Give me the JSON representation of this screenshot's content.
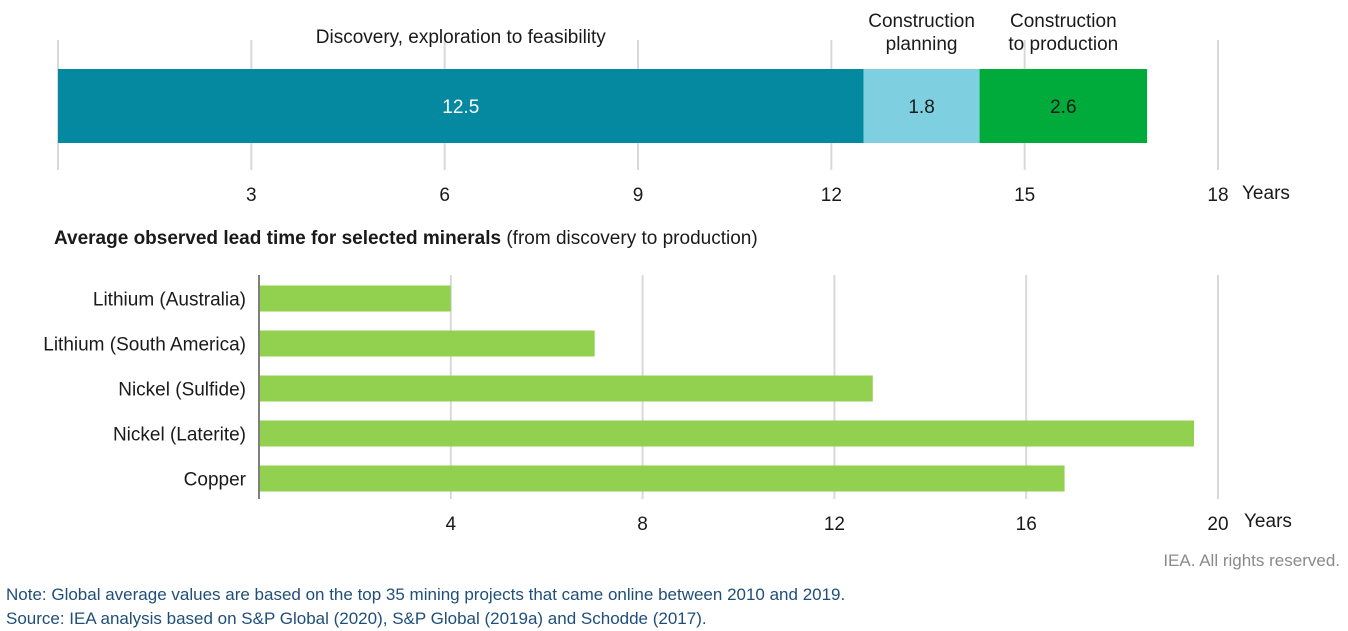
{
  "colors": {
    "stage1": "#0589a0",
    "stage2": "#7ed0e0",
    "stage3": "#00ab3c",
    "minerals": "#92d050",
    "grid": "#d9d9d9",
    "axis": "#7f7f7f"
  },
  "chart_data": [
    {
      "type": "bar",
      "orientation": "horizontal-stacked",
      "title": "",
      "categories": [
        ""
      ],
      "series": [
        {
          "name": "Discovery, exploration to feasibility",
          "values": [
            12.5
          ]
        },
        {
          "name": "Construction planning",
          "values": [
            1.8
          ]
        },
        {
          "name": "Construction to production",
          "values": [
            2.6
          ]
        }
      ],
      "data_labels": [
        "12.5",
        "1.8",
        "2.6"
      ],
      "xlabel": "Years",
      "xlim": [
        0,
        18
      ],
      "xticks": [
        3,
        6,
        9,
        12,
        15,
        18
      ],
      "grid": true
    },
    {
      "type": "bar",
      "orientation": "horizontal",
      "title": "Average observed lead time for selected minerals",
      "subtitle": "(from discovery to production)",
      "categories": [
        "Lithium (Australia)",
        "Lithium (South America)",
        "Nickel (Sulfide)",
        "Nickel (Laterite)",
        "Copper"
      ],
      "values": [
        4,
        7,
        12.8,
        19.5,
        16.8
      ],
      "xlabel": "Years",
      "xlim": [
        0,
        20
      ],
      "xticks": [
        4,
        8,
        12,
        16,
        20
      ],
      "grid": true
    }
  ],
  "credit": "IEA. All rights reserved.",
  "note": "Note: Global average values are based on the top 35 mining projects that came online between 2010 and 2019.",
  "source": "Source: IEA analysis based on S&P Global (2020), S&P Global (2019a) and Schodde (2017)."
}
